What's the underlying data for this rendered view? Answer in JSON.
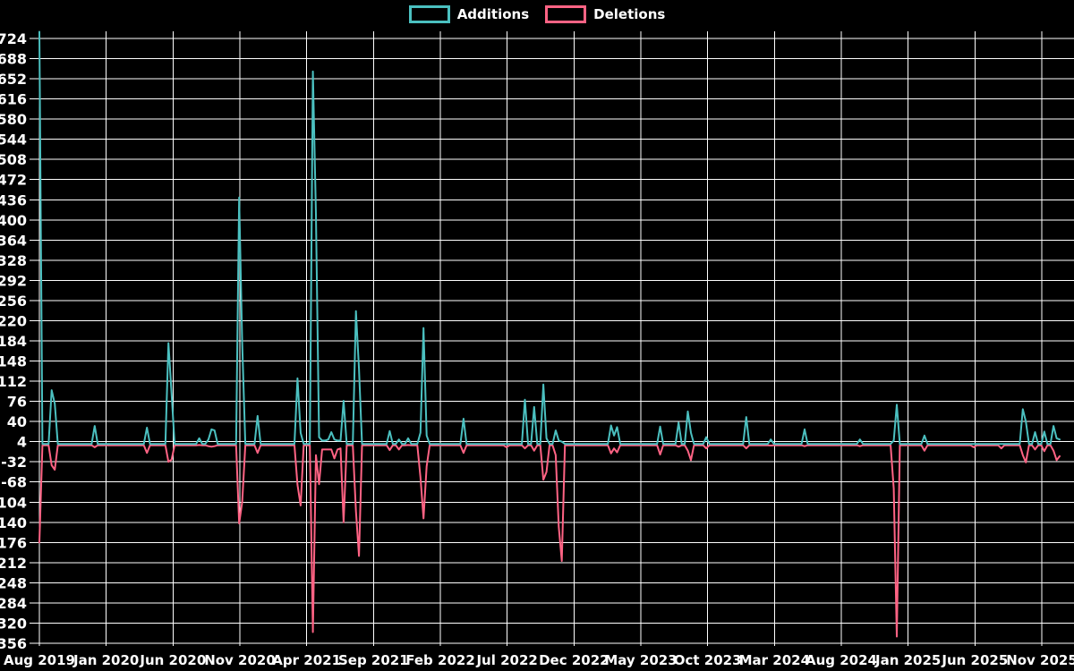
{
  "chart_data": {
    "type": "line",
    "title": "",
    "legend_position": "top-center",
    "background_color": "#000000",
    "grid": {
      "on": true,
      "color": "#ffffff"
    },
    "text_color": "#ffffff",
    "y_axis": {
      "min": -356,
      "max": 724,
      "tick_step": 36,
      "ticks": [
        724,
        688,
        652,
        616,
        580,
        544,
        508,
        472,
        436,
        400,
        364,
        328,
        292,
        256,
        220,
        184,
        148,
        112,
        76,
        40,
        4,
        -32,
        -68,
        -104,
        -140,
        -176,
        -212,
        -248,
        -284,
        -320,
        -356
      ]
    },
    "x_axis": {
      "unit": "weeks",
      "tick_labels": [
        "Aug 2019",
        "Jan 2020",
        "Jun 2020",
        "Nov 2020",
        "Apr 2021",
        "Sep 2021",
        "Feb 2022",
        "Jul 2022",
        "Dec 2022",
        "May 2023",
        "Oct 2023",
        "Mar 2024",
        "Aug 2024",
        "Jan 2025",
        "Jun 2025",
        "Nov 2025"
      ],
      "weeks_total": 333
    },
    "series": [
      {
        "name": "Additions",
        "color": "#4bc0c0"
      },
      {
        "name": "Deletions",
        "color": "#ff6384"
      }
    ],
    "events_by_week": {
      "0": [
        736,
        -176
      ],
      "4": [
        96,
        -38
      ],
      "5": [
        72,
        -46
      ],
      "18": [
        32,
        -6
      ],
      "35": [
        29,
        -16
      ],
      "42": [
        180,
        -32
      ],
      "43": [
        90,
        -28
      ],
      "52": [
        10,
        -2
      ],
      "55": [
        8,
        -4
      ],
      "56": [
        26,
        -5
      ],
      "57": [
        24,
        -4
      ],
      "65": [
        440,
        -142
      ],
      "66": [
        180,
        -104
      ],
      "71": [
        50,
        -16
      ],
      "84": [
        117,
        -73
      ],
      "85": [
        20,
        -110
      ],
      "89": [
        665,
        -336
      ],
      "90": [
        410,
        -20
      ],
      "91": [
        12,
        -72
      ],
      "92": [
        6,
        -10
      ],
      "93": [
        6,
        -10
      ],
      "94": [
        8,
        -10
      ],
      "95": [
        21,
        -10
      ],
      "96": [
        8,
        -26
      ],
      "97": [
        6,
        -10
      ],
      "98": [
        6,
        -8
      ],
      "99": [
        77,
        -140
      ],
      "103": [
        237,
        -120
      ],
      "104": [
        134,
        -200
      ],
      "114": [
        23,
        -11
      ],
      "117": [
        8,
        -10
      ],
      "120": [
        10,
        -2
      ],
      "124": [
        20,
        -60
      ],
      "125": [
        207,
        -133
      ],
      "126": [
        15,
        -40
      ],
      "138": [
        45,
        -16
      ],
      "152": [
        0,
        -6
      ],
      "158": [
        79,
        -8
      ],
      "161": [
        66,
        -12
      ],
      "164": [
        106,
        -64
      ],
      "165": [
        10,
        -50
      ],
      "168": [
        24,
        -20
      ],
      "169": [
        6,
        -148
      ],
      "170": [
        4,
        -209
      ],
      "186": [
        33,
        -17
      ],
      "187": [
        15,
        -8
      ],
      "188": [
        30,
        -15
      ],
      "202": [
        31,
        -19
      ],
      "208": [
        38,
        -5
      ],
      "211": [
        58,
        -12
      ],
      "212": [
        20,
        -29
      ],
      "217": [
        12,
        -8
      ],
      "230": [
        48,
        -8
      ],
      "238": [
        8,
        -3
      ],
      "249": [
        26,
        -4
      ],
      "267": [
        8,
        -4
      ],
      "278": [
        6,
        -80
      ],
      "279": [
        70,
        -344
      ],
      "288": [
        15,
        -12
      ],
      "304": [
        0,
        -6
      ],
      "313": [
        0,
        -8
      ],
      "320": [
        62,
        -20
      ],
      "321": [
        40,
        -33
      ],
      "324": [
        21,
        -10
      ],
      "327": [
        22,
        -13
      ],
      "330": [
        32,
        -12
      ],
      "331": [
        10,
        -29
      ],
      "332": [
        8,
        -22
      ]
    }
  }
}
